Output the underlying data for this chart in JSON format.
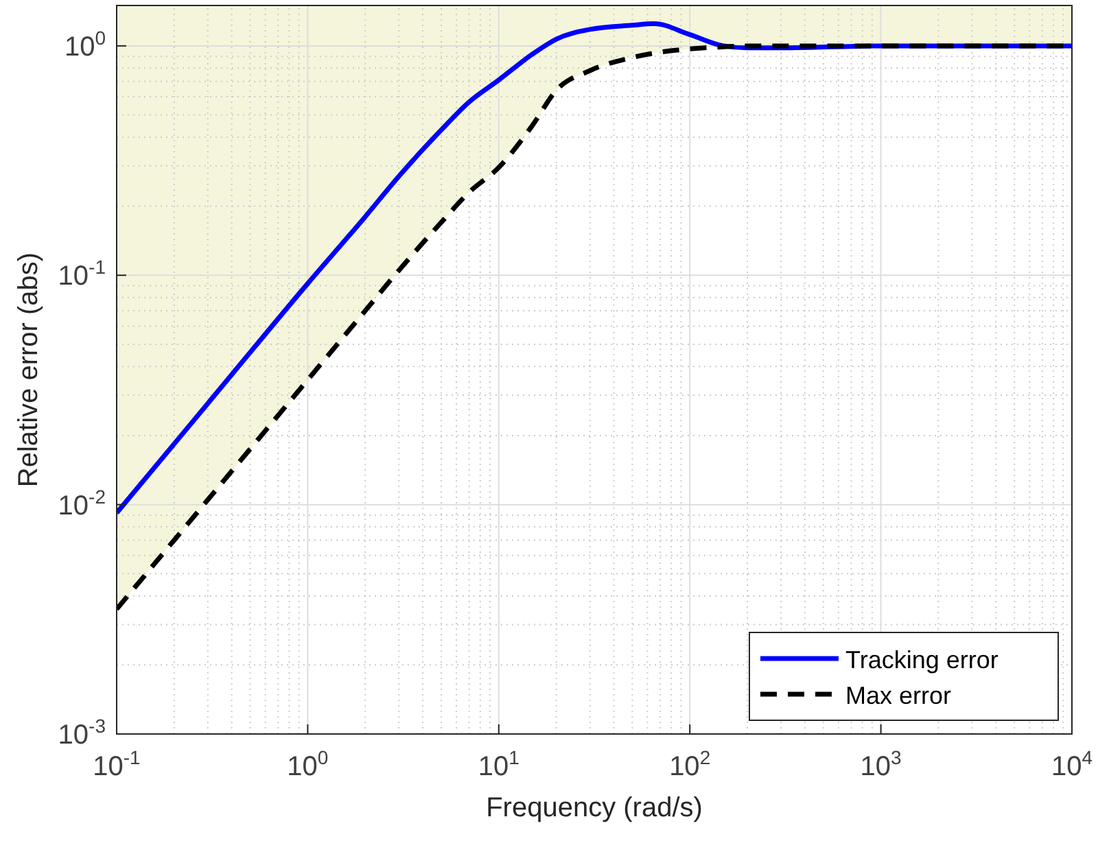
{
  "chart_data": {
    "type": "line",
    "xlabel": "Frequency (rad/s)",
    "ylabel": "Relative error (abs)",
    "log": "xy",
    "grid": true,
    "legend": "bottom right",
    "xlim": [
      0.1,
      10000
    ],
    "ylim": [
      0.001,
      1.5
    ],
    "xticks": [
      {
        "value": 0.1,
        "label": "10$^{-1}$"
      },
      {
        "value": 1,
        "label": "10$^{0}$"
      },
      {
        "value": 10,
        "label": "10$^{1}$"
      },
      {
        "value": 100,
        "label": "10$^{2}$"
      },
      {
        "value": 1000,
        "label": "10$^{3}$"
      },
      {
        "value": 10000,
        "label": "10$^{4}$"
      }
    ],
    "yticks": [
      {
        "value": 0.001,
        "label": "10$^{-3}$"
      },
      {
        "value": 0.01,
        "label": "10$^{-2}$"
      },
      {
        "value": 0.1,
        "label": "10$^{-1}$"
      },
      {
        "value": 1,
        "label": "10$^{0}$"
      }
    ],
    "x": [
      0.1,
      0.3,
      1,
      2,
      3,
      5,
      7,
      10,
      15,
      20,
      30,
      50,
      65,
      100,
      150,
      200,
      300,
      1000,
      10000
    ],
    "series": [
      {
        "name": "Tracking error",
        "color": "#0000ff",
        "line_style": "solid",
        "values": [
          0.0092,
          0.0276,
          0.092,
          0.18,
          0.27,
          0.43,
          0.57,
          0.71,
          0.92,
          1.07,
          1.18,
          1.23,
          1.25,
          1.12,
          1.0,
          0.98,
          0.98,
          1.0,
          1.0
        ]
      },
      {
        "name": "Max error",
        "color": "#000000",
        "line_style": "dashed",
        "values": [
          0.0035,
          0.0105,
          0.035,
          0.07,
          0.105,
          0.17,
          0.23,
          0.295,
          0.45,
          0.64,
          0.78,
          0.89,
          0.93,
          0.97,
          0.99,
          1.0,
          1.0,
          1.0,
          1.0
        ],
        "lower": [
          0.0035,
          0.0105,
          0.035,
          0.07,
          0.105,
          0.17,
          0.23,
          0.295,
          0.45,
          0.64,
          0.78,
          0.89,
          0.93,
          0.97,
          0.99,
          1.0,
          1.0,
          1.0,
          1.0
        ],
        "upper": [
          1.5,
          1.5,
          1.5,
          1.5,
          1.5,
          1.5,
          1.5,
          1.5,
          1.5,
          1.5,
          1.5,
          1.5,
          1.5,
          1.5,
          1.5,
          1.5,
          1.5,
          1.5,
          1.5
        ]
      }
    ]
  }
}
